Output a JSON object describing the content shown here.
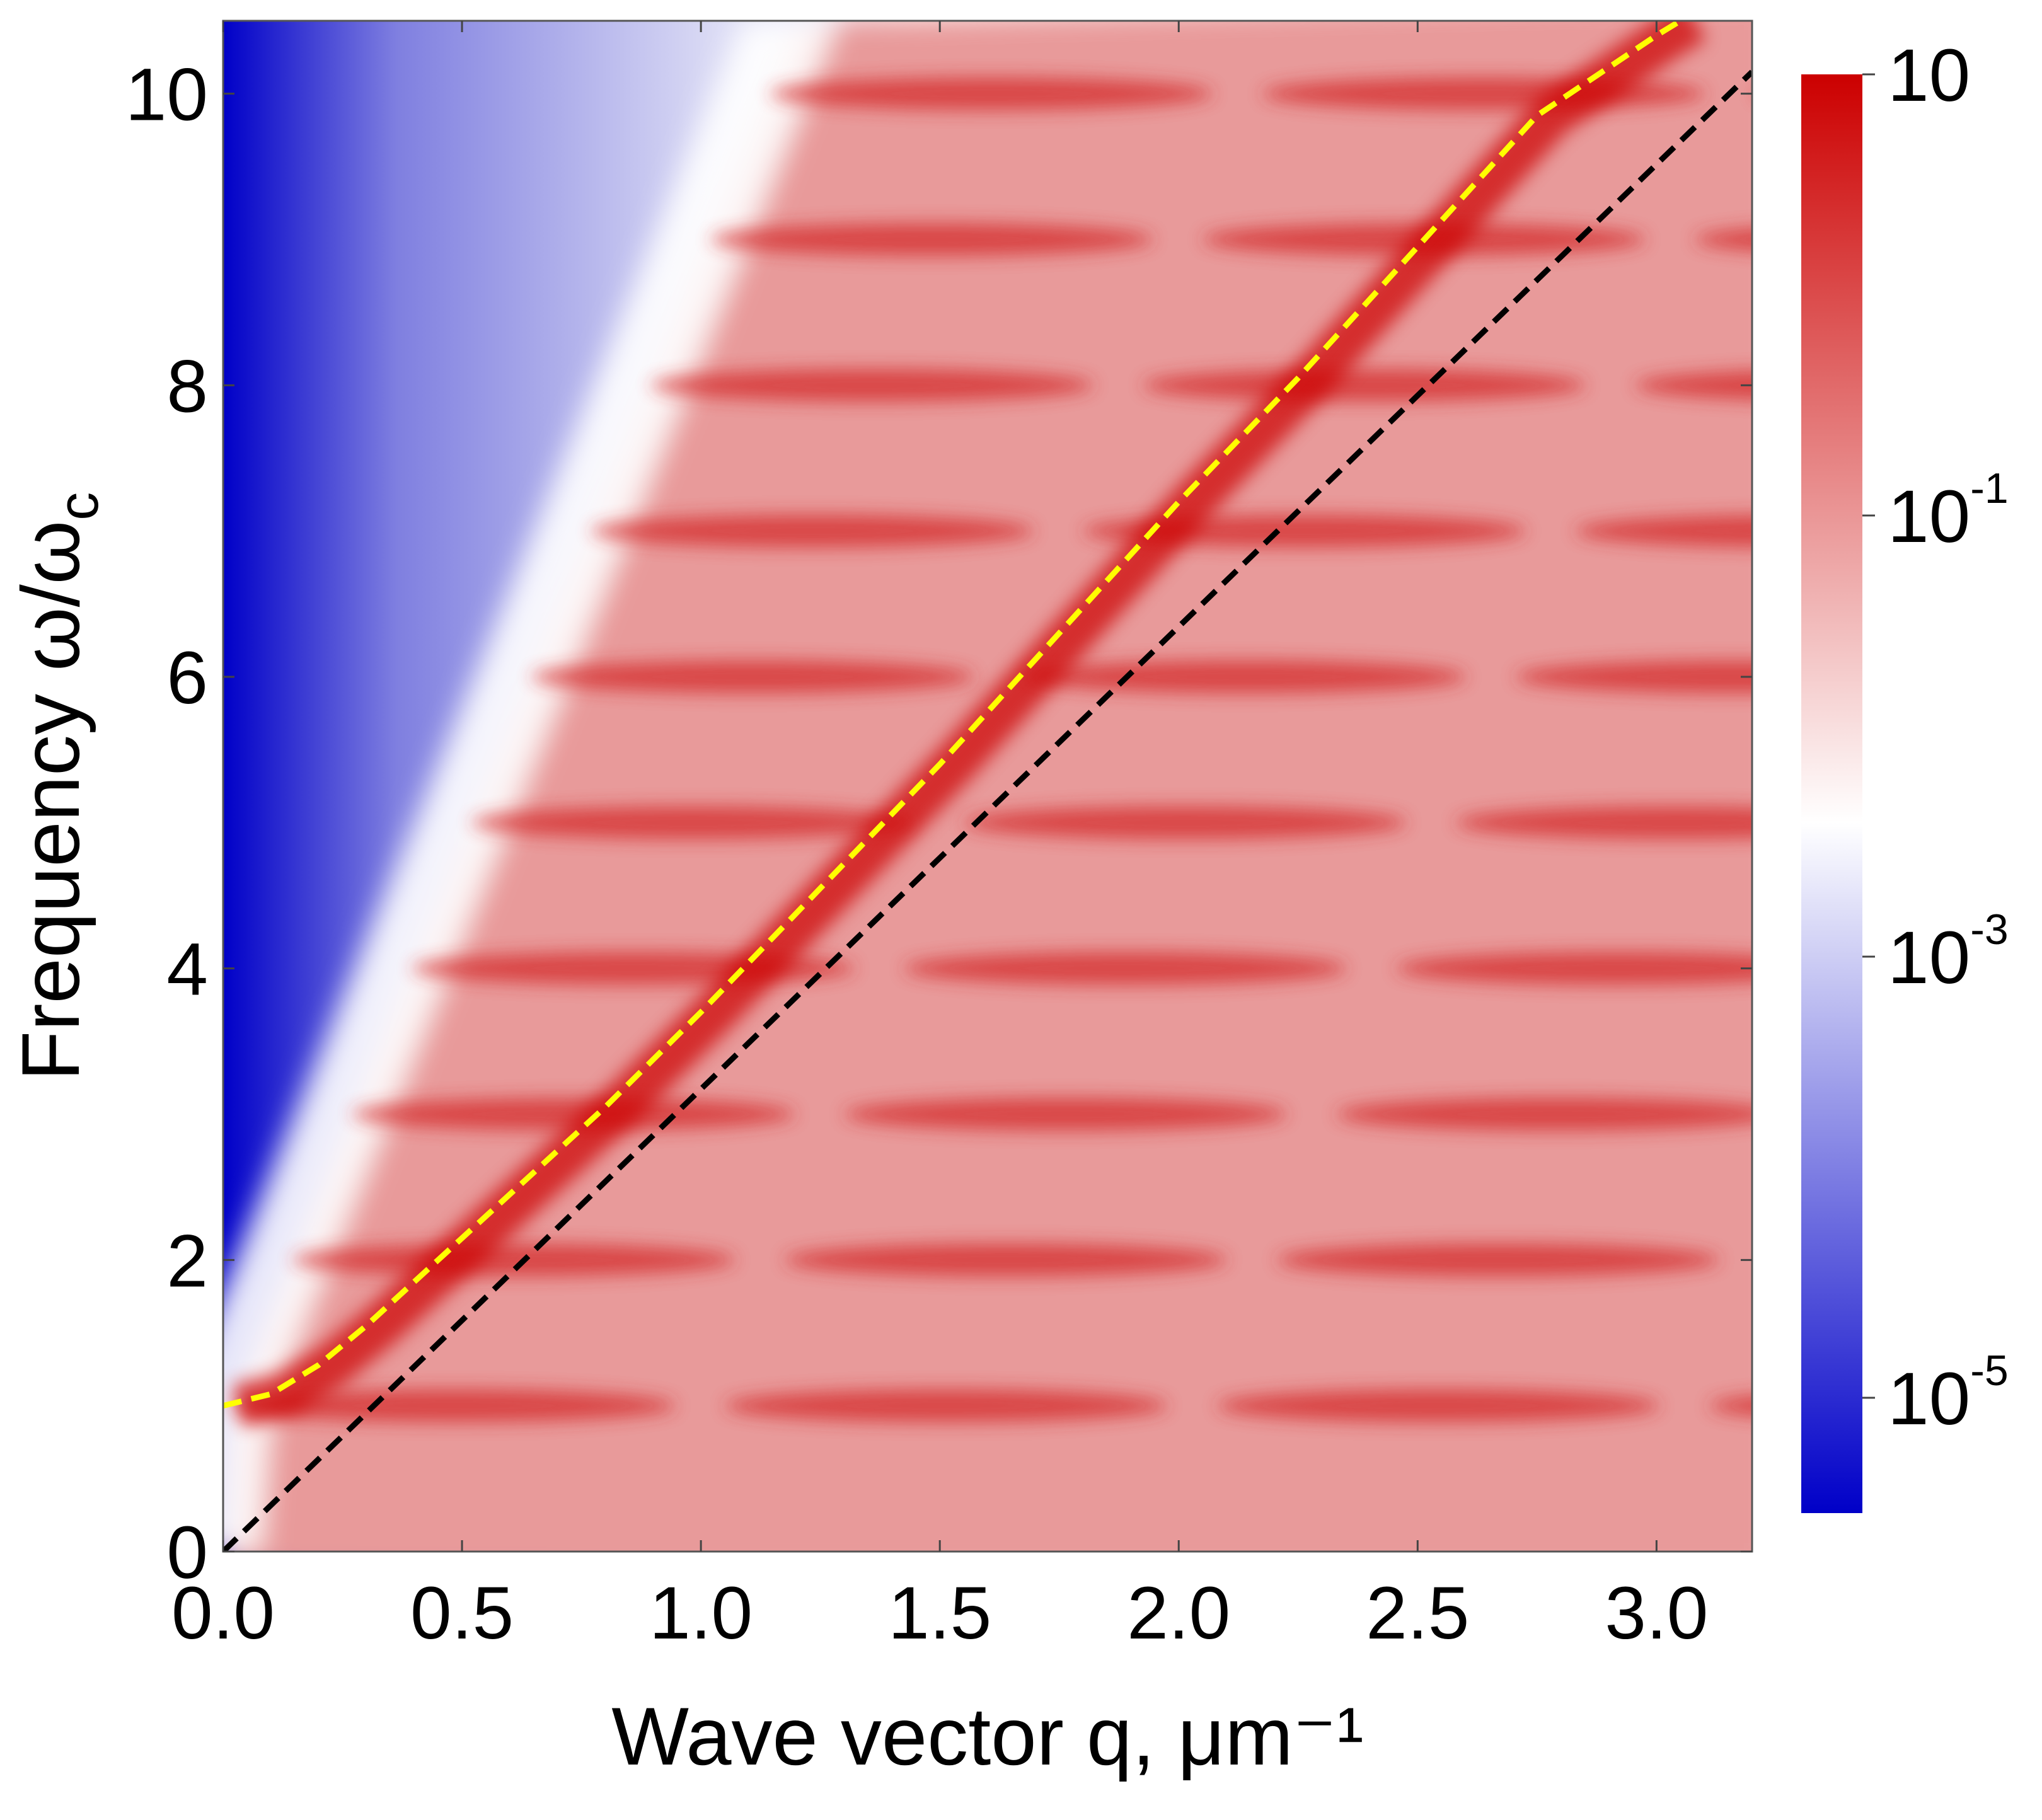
{
  "chart_data": {
    "type": "heatmap",
    "title": "",
    "xlabel": "Wave vector q, μm⁻¹",
    "ylabel": "Frequency ω/ω",
    "ylabel_sub": "c",
    "x_ticks": [
      "0.0",
      "0.5",
      "1.0",
      "1.5",
      "2.0",
      "2.5",
      "3.0"
    ],
    "x_tick_values": [
      0.0,
      0.5,
      1.0,
      1.5,
      2.0,
      2.5,
      3.0
    ],
    "y_ticks": [
      "0",
      "2",
      "4",
      "6",
      "8",
      "10"
    ],
    "y_tick_values": [
      0,
      2,
      4,
      6,
      8,
      10
    ],
    "xlim": [
      0.0,
      3.2
    ],
    "ylim": [
      0.0,
      10.5
    ],
    "colorbar": {
      "scale": "log",
      "range": [
        3e-06,
        10
      ],
      "tick_values": [
        10,
        0.1,
        0.001,
        1e-05
      ],
      "ticks": [
        {
          "base": "10",
          "exp": ""
        },
        {
          "base": "10",
          "exp": "-1"
        },
        {
          "base": "10",
          "exp": "-3"
        },
        {
          "base": "10",
          "exp": "-5"
        }
      ],
      "colors": [
        "#0000c8",
        "#ffffff",
        "#cc0000"
      ]
    },
    "branches": {
      "frequencies": [
        1,
        2,
        3,
        4,
        5,
        6,
        7,
        8,
        9,
        10
      ],
      "repeat_period_q": 1.03
    },
    "series": [
      {
        "name": "yellow dashed",
        "color": "#ffff00",
        "style": "dashed",
        "x": [
          0.0,
          0.1,
          0.2,
          0.3,
          0.45,
          0.6,
          0.8,
          1.0,
          1.25,
          1.5,
          1.75,
          2.0,
          2.25,
          2.5,
          2.75,
          3.0,
          3.05
        ],
        "y": [
          1.0,
          1.08,
          1.28,
          1.55,
          2.0,
          2.45,
          3.05,
          3.7,
          4.55,
          5.4,
          6.3,
          7.2,
          8.05,
          8.95,
          9.85,
          10.4,
          10.5
        ]
      },
      {
        "name": "black dashed",
        "color": "#000000",
        "style": "dashed",
        "x": [
          0.0,
          3.2
        ],
        "y": [
          0.0,
          10.15
        ]
      }
    ]
  }
}
